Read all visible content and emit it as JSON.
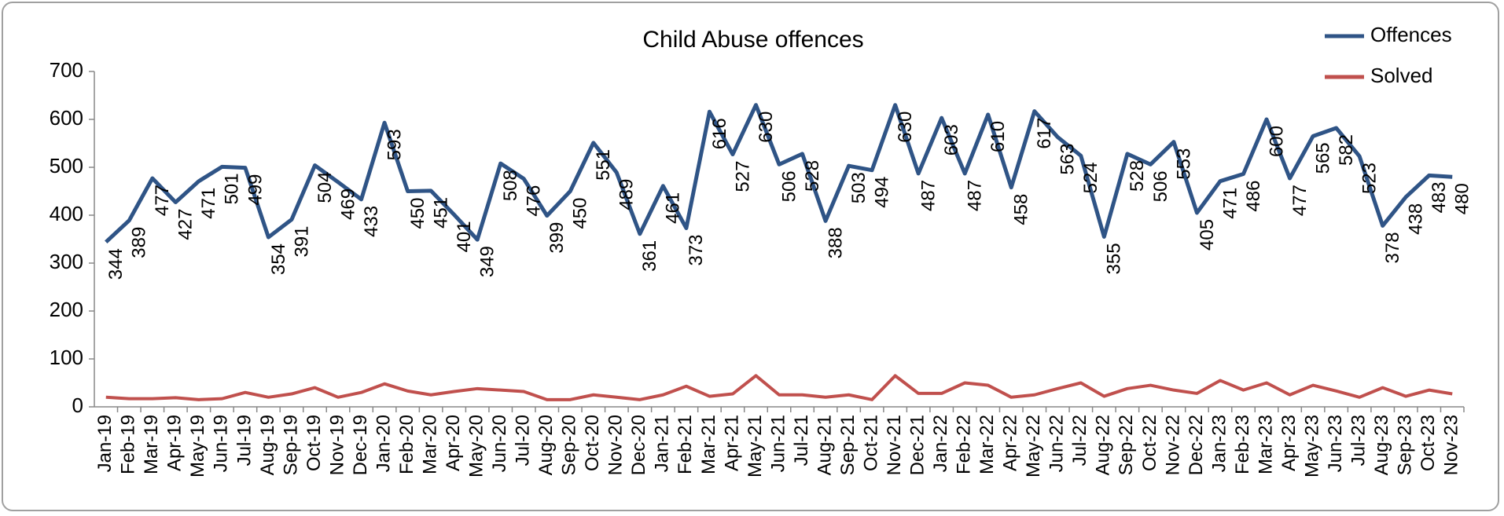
{
  "chart_data": {
    "type": "line",
    "title": "Child Abuse offences",
    "categories": [
      "Jan-19",
      "Feb-19",
      "Mar-19",
      "Apr-19",
      "May-19",
      "Jun-19",
      "Jul-19",
      "Aug-19",
      "Sep-19",
      "Oct-19",
      "Nov-19",
      "Dec-19",
      "Jan-20",
      "Feb-20",
      "Mar-20",
      "Apr-20",
      "May-20",
      "Jun-20",
      "Jul-20",
      "Aug-20",
      "Sep-20",
      "Oct-20",
      "Nov-20",
      "Dec-20",
      "Jan-21",
      "Feb-21",
      "Mar-21",
      "Apr-21",
      "May-21",
      "Jun-21",
      "Jul-21",
      "Aug-21",
      "Sep-21",
      "Oct-21",
      "Nov-21",
      "Dec-21",
      "Jan-22",
      "Feb-22",
      "Mar-22",
      "Apr-22",
      "May-22",
      "Jun-22",
      "Jul-22",
      "Aug-22",
      "Sep-22",
      "Oct-22",
      "Nov-22",
      "Dec-22",
      "Jan-23",
      "Feb-23",
      "Mar-23",
      "Apr-23",
      "May-23",
      "Jun-23",
      "Jul-23",
      "Aug-23",
      "Sep-23",
      "Oct-23",
      "Nov-23"
    ],
    "series": [
      {
        "name": "Offences",
        "color": "#2f5486",
        "values": [
          344,
          389,
          477,
          427,
          471,
          501,
          499,
          354,
          391,
          504,
          469,
          433,
          593,
          450,
          451,
          401,
          349,
          508,
          476,
          399,
          450,
          551,
          489,
          361,
          461,
          373,
          616,
          527,
          630,
          506,
          528,
          388,
          503,
          494,
          630,
          487,
          603,
          487,
          610,
          458,
          617,
          563,
          524,
          355,
          528,
          506,
          553,
          405,
          471,
          486,
          600,
          477,
          565,
          582,
          523,
          378,
          438,
          483,
          480
        ]
      },
      {
        "name": "Solved",
        "color": "#c0504d",
        "values": [
          20,
          17,
          17,
          19,
          15,
          17,
          30,
          20,
          27,
          40,
          20,
          30,
          48,
          33,
          25,
          32,
          38,
          35,
          32,
          15,
          15,
          25,
          20,
          15,
          25,
          43,
          22,
          27,
          65,
          25,
          25,
          20,
          25,
          15,
          65,
          28,
          28,
          50,
          45,
          20,
          25,
          38,
          50,
          22,
          38,
          45,
          35,
          28,
          55,
          35,
          50,
          25,
          45,
          33,
          20,
          40,
          22,
          35,
          27
        ]
      }
    ],
    "ylim": [
      0,
      700
    ],
    "yticks": [
      0,
      100,
      200,
      300,
      400,
      500,
      600,
      700
    ],
    "legend": "top-right"
  }
}
